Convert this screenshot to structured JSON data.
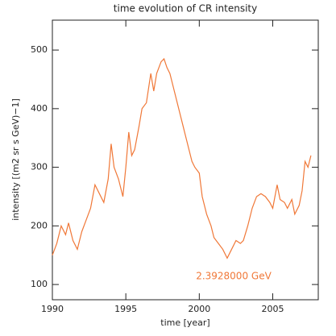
{
  "chart_data": {
    "type": "line",
    "title": "time evolution of CR intensity",
    "x_label": "time [year]",
    "y_label": "intensity [(m2 sr s GeV)−1]",
    "annotation": "2.3928000 GeV",
    "x": [
      1990.0,
      1990.3,
      1990.6,
      1990.9,
      1991.1,
      1991.4,
      1991.7,
      1992.0,
      1992.3,
      1992.6,
      1992.9,
      1993.2,
      1993.5,
      1993.8,
      1994.0,
      1994.2,
      1994.5,
      1994.8,
      1995.0,
      1995.2,
      1995.4,
      1995.6,
      1995.9,
      1996.1,
      1996.4,
      1996.7,
      1996.9,
      1997.1,
      1997.4,
      1997.6,
      1997.8,
      1998.0,
      1998.3,
      1998.6,
      1998.9,
      1999.1,
      1999.3,
      1999.5,
      1999.7,
      2000.0,
      2000.2,
      2000.5,
      2000.8,
      2001.0,
      2001.3,
      2001.6,
      2001.9,
      2002.2,
      2002.5,
      2002.8,
      2003.0,
      2003.3,
      2003.6,
      2003.9,
      2004.2,
      2004.5,
      2004.8,
      2005.0,
      2005.3,
      2005.5,
      2005.8,
      2006.0,
      2006.3,
      2006.5,
      2006.8,
      2007.0,
      2007.2,
      2007.4,
      2007.6
    ],
    "series": [
      {
        "name": "2.3928000 GeV",
        "color": "#f07838",
        "values": [
          150,
          170,
          200,
          185,
          205,
          175,
          160,
          190,
          210,
          230,
          270,
          255,
          240,
          280,
          340,
          300,
          280,
          250,
          300,
          360,
          320,
          330,
          370,
          400,
          410,
          460,
          430,
          460,
          480,
          485,
          470,
          460,
          430,
          400,
          370,
          350,
          330,
          310,
          300,
          290,
          250,
          220,
          200,
          180,
          170,
          160,
          145,
          160,
          175,
          170,
          175,
          200,
          230,
          250,
          255,
          250,
          240,
          230,
          270,
          245,
          240,
          230,
          245,
          220,
          235,
          260,
          310,
          300,
          320
        ]
      }
    ],
    "xlim": [
      1990,
      2008.1
    ],
    "ylim": [
      74,
      551
    ],
    "xticks": [
      1990,
      1995,
      2000,
      2005
    ],
    "yticks": [
      100,
      200,
      300,
      400,
      500
    ]
  }
}
